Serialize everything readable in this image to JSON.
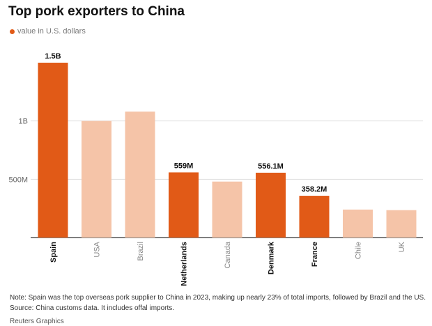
{
  "title": "Top pork exporters to China",
  "legend_label": "value in U.S. dollars",
  "colors": {
    "highlight": "#e15a17",
    "muted": "#f5c4a8",
    "grid": "#dddddd",
    "axis": "#333333"
  },
  "chart_data": {
    "type": "bar",
    "categories": [
      "Spain",
      "USA",
      "Brazil",
      "Netherlands",
      "Canada",
      "Denmark",
      "France",
      "Chile",
      "UK"
    ],
    "values": [
      1500,
      1000,
      1080,
      559,
      480,
      556.1,
      358.2,
      240,
      235
    ],
    "highlighted": [
      true,
      false,
      false,
      true,
      false,
      true,
      true,
      false,
      false
    ],
    "data_labels": [
      "1.5B",
      "",
      "",
      "559M",
      "",
      "556.1M",
      "358.2M",
      "",
      ""
    ],
    "ylim": [
      0,
      1500
    ],
    "yticks": [
      {
        "value": 500,
        "label": "500M"
      },
      {
        "value": 1000,
        "label": "1B"
      }
    ],
    "grid": true
  },
  "note": "Note: Spain was the top overseas pork supplier to China in 2023, making up nearly 23% of total imports, followed by Brazil and the US.",
  "source": "Source: China customs data. It includes offal imports.",
  "credit": "Reuters Graphics"
}
